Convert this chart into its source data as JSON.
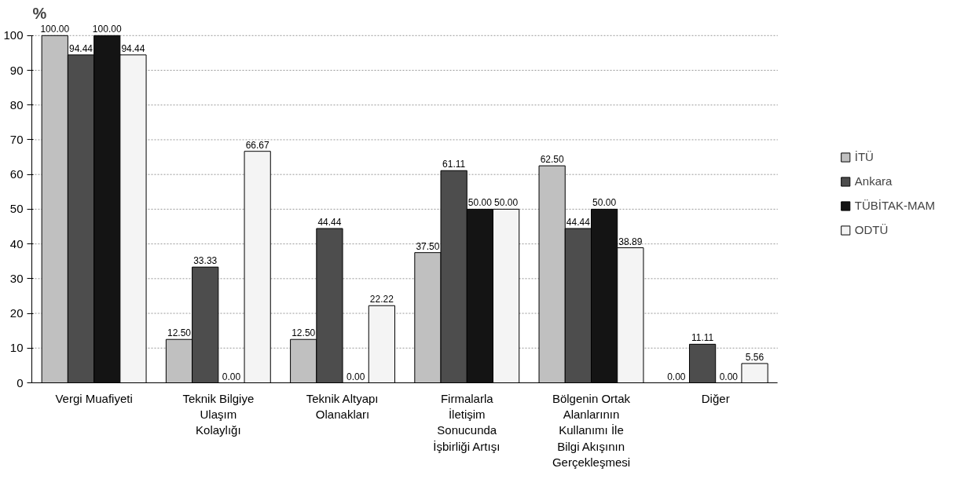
{
  "chart_data": {
    "type": "bar",
    "ylabel": "%",
    "categories": [
      "Vergi Muafiyeti",
      "Teknik Bilgiye\nUlaşım\nKolaylığı",
      "Teknik Altyapı\nOlanakları",
      "Firmalarla\nİletişim\nSonucunda\nİşbirliği Artışı",
      "Bölgenin Ortak\nAlanlarının\nKullanımı İle\nBilgi Akışının\nGerçekleşmesi",
      "Diğer"
    ],
    "series": [
      {
        "name": "İTÜ",
        "color": "#c0c0c0",
        "values": [
          100.0,
          12.5,
          12.5,
          37.5,
          62.5,
          0.0
        ],
        "value_labels": [
          "100.00",
          "12.50",
          "12.50",
          "37.50",
          "62.50",
          "0.00"
        ]
      },
      {
        "name": "Ankara",
        "color": "#4d4d4d",
        "values": [
          94.44,
          33.33,
          44.44,
          61.11,
          44.44,
          11.11
        ],
        "value_labels": [
          "94.44",
          "33.33",
          "44.44",
          "61.11",
          "44.44",
          "11.11"
        ]
      },
      {
        "name": "TÜBİTAK-MAM",
        "color": "#141414",
        "values": [
          100.0,
          0.0,
          0.0,
          50.0,
          50.0,
          0.0
        ],
        "value_labels": [
          "100.00",
          "0.00",
          "0.00",
          "50.00",
          "50.00",
          "0.00"
        ]
      },
      {
        "name": "ODTÜ",
        "color": "#f4f4f4",
        "values": [
          94.44,
          66.67,
          22.22,
          50.0,
          38.89,
          5.56
        ],
        "value_labels": [
          "94.44",
          "66.67",
          "22.22",
          "50.00",
          "38.89",
          "5.56"
        ]
      }
    ],
    "ylim": [
      0,
      100
    ],
    "yticks": [
      0,
      10,
      20,
      30,
      40,
      50,
      60,
      70,
      80,
      90,
      100
    ],
    "grid": "y",
    "legend": "right"
  }
}
